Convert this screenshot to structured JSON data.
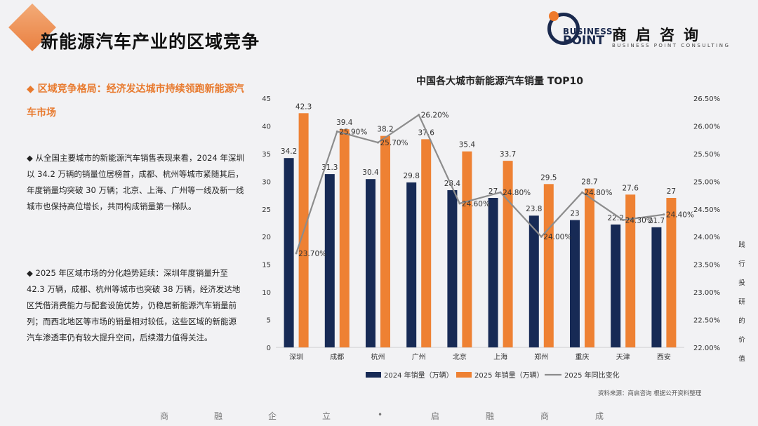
{
  "header": {
    "title": "新能源汽车产业的区域竞争",
    "logo_en_1": "BUSINESS",
    "logo_en_2": "POINT",
    "logo_cn": "商启咨询",
    "logo_tagline": "BUSINESS POINT CONSULTING"
  },
  "content": {
    "subtitle": "◆ 区域竞争格局：经济发达城市持续领跑新能源汽车市场",
    "paragraph1": "◆ 从全国主要城市的新能源汽车销售表现来看，2024 年深圳以 34.2 万辆的销量位居榜首，成都、杭州等城市紧随其后，年度销量均突破 30 万辆；北京、上海、广州等一线及新一线城市也保持高位增长，共同构成销量第一梯队。",
    "paragraph2": "◆ 2025 年区域市场的分化趋势延续：深圳年度销量升至 42.3 万辆，成都、杭州等城市也突破 38 万辆，经济发达地区凭借消费能力与配套设施优势，仍稳居新能源汽车销量前列；而西北地区等市场的销量相对较低，这些区域的新能源汽车渗透率仍有较大提升空间，后续潜力值得关注。"
  },
  "side_note": [
    "践",
    "行",
    "投",
    "研",
    "的",
    "价",
    "值"
  ],
  "source": "资料来源：商启咨询 根据公开资料整理",
  "footer": [
    "商",
    "融",
    "企",
    "立",
    "•",
    "启",
    "融",
    "商",
    "成"
  ],
  "colors": {
    "bar2024": "#172a55",
    "bar2025": "#ee8133",
    "line": "#8c8c8c",
    "accent": "#e87a2e"
  },
  "chart_data": {
    "type": "bar",
    "title": "中国各大城市新能源汽车销量 TOP10",
    "categories": [
      "深圳",
      "成都",
      "杭州",
      "广州",
      "北京",
      "上海",
      "郑州",
      "重庆",
      "天津",
      "西安"
    ],
    "series": [
      {
        "name": "2024 年销量（万辆）",
        "type": "bar",
        "axis": "left",
        "values": [
          34.2,
          31.3,
          30.4,
          29.8,
          28.4,
          27,
          23.8,
          23,
          22.2,
          21.7
        ]
      },
      {
        "name": "2025 年销量（万辆）",
        "type": "bar",
        "axis": "left",
        "values": [
          42.3,
          39.4,
          38.2,
          37.6,
          35.4,
          33.7,
          29.5,
          28.7,
          27.6,
          27
        ]
      },
      {
        "name": "2025 年同比变化",
        "type": "line",
        "axis": "right",
        "values": [
          23.7,
          25.9,
          25.7,
          26.2,
          24.6,
          24.8,
          24.0,
          24.8,
          24.3,
          24.4
        ],
        "labels": [
          "23.70%",
          "25.90%",
          "25.70%",
          "26.20%",
          "24.60%",
          "24.80%",
          "24.00%",
          "24.80%",
          "24.30%",
          "24.40%"
        ]
      }
    ],
    "y_left": {
      "min": 0,
      "max": 45,
      "step": 5,
      "ticks": [
        "0",
        "5",
        "10",
        "15",
        "20",
        "25",
        "30",
        "35",
        "40",
        "45"
      ]
    },
    "y_right": {
      "min": 22.0,
      "max": 26.5,
      "step": 0.5,
      "ticks": [
        "22.00%",
        "22.50%",
        "23.00%",
        "23.50%",
        "24.00%",
        "24.50%",
        "25.00%",
        "25.50%",
        "26.00%",
        "26.50%"
      ]
    },
    "legend_position": "bottom",
    "grid": false
  }
}
